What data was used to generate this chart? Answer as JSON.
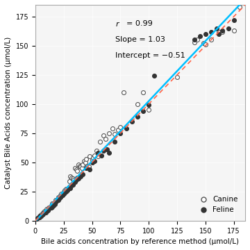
{
  "title": "",
  "xlabel": "Bile acids concentration by reference method (μmol/L)",
  "ylabel": "Catalyst Bile Acids concentration (μmol/L)",
  "xlim": [
    0,
    185
  ],
  "ylim": [
    0,
    185
  ],
  "xticks": [
    0,
    25,
    50,
    75,
    100,
    125,
    150,
    175
  ],
  "yticks": [
    0,
    25,
    50,
    75,
    100,
    125,
    150,
    175
  ],
  "r": 0.99,
  "slope": 1.03,
  "intercept": -0.51,
  "regression_color": "#00BFFF",
  "identity_color": "#FF6347",
  "canine_x": [
    2,
    3,
    4,
    5,
    5,
    6,
    7,
    7,
    8,
    9,
    10,
    10,
    11,
    12,
    13,
    14,
    15,
    15,
    16,
    17,
    18,
    18,
    19,
    20,
    20,
    21,
    22,
    22,
    23,
    23,
    24,
    25,
    25,
    26,
    27,
    28,
    29,
    30,
    30,
    31,
    32,
    33,
    34,
    35,
    36,
    37,
    38,
    39,
    40,
    41,
    42,
    43,
    44,
    45,
    46,
    47,
    48,
    50,
    51,
    52,
    54,
    55,
    57,
    60,
    62,
    65,
    68,
    70,
    73,
    75,
    78,
    90,
    95,
    100,
    125,
    140,
    143,
    148,
    150,
    155,
    162,
    165,
    175,
    180
  ],
  "canine_y": [
    2,
    3,
    3,
    4,
    5,
    5,
    6,
    7,
    8,
    8,
    9,
    10,
    10,
    11,
    12,
    13,
    14,
    15,
    15,
    16,
    17,
    18,
    17,
    19,
    20,
    20,
    21,
    22,
    22,
    23,
    22,
    24,
    25,
    26,
    27,
    27,
    28,
    29,
    34,
    38,
    37,
    36,
    35,
    45,
    44,
    43,
    48,
    47,
    46,
    45,
    48,
    51,
    50,
    53,
    47,
    46,
    55,
    52,
    54,
    56,
    60,
    55,
    68,
    73,
    70,
    75,
    79,
    74,
    78,
    80,
    110,
    100,
    110,
    95,
    123,
    153,
    155,
    152,
    151,
    155,
    162,
    162,
    163,
    183
  ],
  "feline_x": [
    1,
    2,
    3,
    4,
    5,
    6,
    7,
    8,
    9,
    10,
    11,
    12,
    13,
    14,
    15,
    16,
    17,
    18,
    20,
    21,
    22,
    23,
    24,
    25,
    26,
    27,
    28,
    29,
    30,
    31,
    32,
    33,
    35,
    36,
    37,
    38,
    40,
    42,
    45,
    48,
    50,
    52,
    55,
    58,
    60,
    63,
    65,
    70,
    75,
    80,
    85,
    90,
    95,
    100,
    105,
    140,
    145,
    150,
    155,
    160,
    162,
    165,
    170,
    175
  ],
  "feline_y": [
    1,
    2,
    3,
    4,
    4,
    5,
    6,
    7,
    7,
    8,
    9,
    10,
    11,
    11,
    12,
    13,
    14,
    16,
    18,
    19,
    20,
    21,
    22,
    23,
    24,
    25,
    26,
    27,
    28,
    28,
    30,
    31,
    33,
    35,
    37,
    36,
    38,
    40,
    45,
    44,
    50,
    51,
    58,
    56,
    60,
    61,
    58,
    68,
    75,
    79,
    85,
    89,
    94,
    99,
    124,
    155,
    158,
    160,
    162,
    165,
    160,
    163,
    165,
    172
  ],
  "background_color": "#f5f5f5"
}
